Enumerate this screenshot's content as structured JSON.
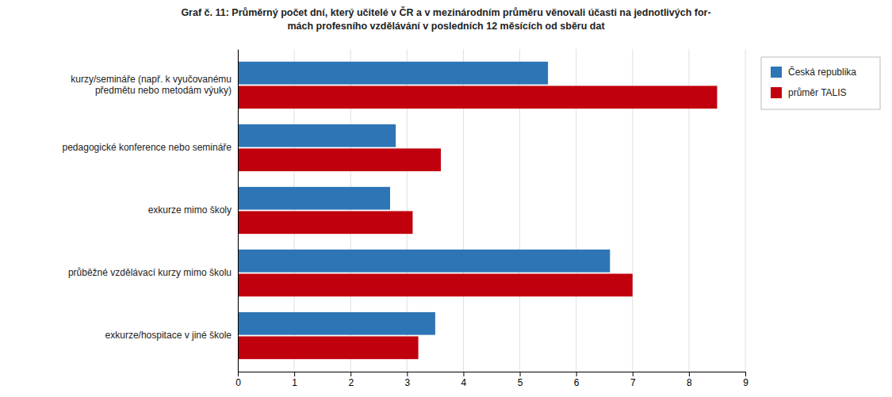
{
  "chart_data": {
    "type": "bar",
    "orientation": "horizontal",
    "title": "Graf č. 11: Průměrný počet dní, který učitelé v ČR a v mezinárodním průměru věnovali účasti na jednotlivých for-\nmách profesního vzdělávání v posledních 12 měsících od sběru dat",
    "categories": [
      "kurzy/semináře (např. k vyučovanému\npředmětu nebo metodám výuky)",
      "pedagogické konference nebo semináře",
      "exkurze mimo školy",
      "průběžné vzdělávací kurzy mimo školu",
      "exkurze/hospitace v jiné škole"
    ],
    "series": [
      {
        "name": "Česká republika",
        "color": "#2E75B6",
        "values": [
          5.5,
          2.8,
          2.7,
          6.6,
          3.5
        ]
      },
      {
        "name": "průměr TALIS",
        "color": "#C0000C",
        "values": [
          8.5,
          3.6,
          3.1,
          7.0,
          3.2
        ]
      }
    ],
    "xlim": [
      0,
      9
    ],
    "xticks": [
      0,
      1,
      2,
      3,
      4,
      5,
      6,
      7,
      8,
      9
    ],
    "grid": true,
    "legend": "upper right"
  }
}
